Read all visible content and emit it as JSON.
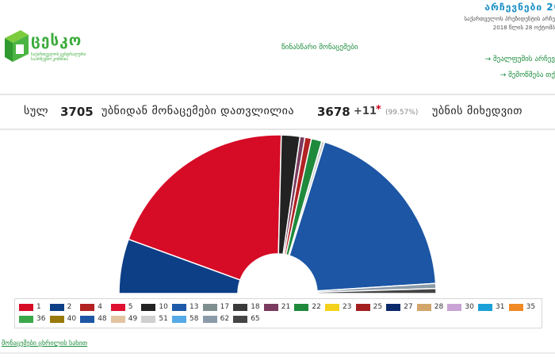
{
  "header": {
    "logo_name": "ცესკო",
    "logo_subtitle": "საქართველოს ცენტრალური საარჩევნო კომისია",
    "election_title": "არჩევნები 20",
    "subline_1": "საქართველოს პრეზიდენტის არჩე",
    "subline_2": "2018 წლის 28 ოქტომბ",
    "preliminary": "წინასწარი მონაცემები",
    "link_a": "→ შეალფუშის არჩევ",
    "link_b": "→ შემოწმება თქ"
  },
  "stats": {
    "total_label": "სულ",
    "total": "3705",
    "from_label": "უბნიდან მონაცემები დათვლილია",
    "counted": "3678",
    "extra": "+11",
    "star": "*",
    "percent": "(99.57%)",
    "by_label": "უბნის მიხედვით"
  },
  "colors": {
    "1": "#d60b26",
    "2": "#0d3f86",
    "4": "#b22222",
    "5": "#e01030",
    "10": "#222222",
    "13": "#1e5aa8",
    "17": "#7f8f8f",
    "18": "#3a3a3a",
    "21": "#7a3b5e",
    "22": "#1f8a3c",
    "23": "#f4d21b",
    "25": "#a31f1f",
    "27": "#0b2a6b",
    "28": "#d2a56a",
    "30": "#c9a3d6",
    "31": "#1ba0d8",
    "35": "#f08a24",
    "36": "#3aa84a",
    "40": "#9a7a0c",
    "48": "#1c56a4",
    "49": "#e3c4a0",
    "51": "#cfcfcf",
    "58": "#55a9e6",
    "62": "#8a9aa8",
    "65": "#454545"
  },
  "chart_data": {
    "type": "pie",
    "subtype": "semicircle",
    "title": "",
    "categories": [
      "2",
      "1",
      "10",
      "21",
      "4",
      "22",
      "51",
      "48",
      "62",
      "65"
    ],
    "values": [
      10.9,
      38.9,
      3.7,
      1.0,
      1.3,
      2.1,
      0.6,
      37.6,
      1.0,
      1.0
    ],
    "legend": [
      "1",
      "2",
      "4",
      "5",
      "10",
      "13",
      "17",
      "18",
      "21",
      "22",
      "23",
      "25",
      "27",
      "28",
      "30",
      "31",
      "35",
      "36",
      "40",
      "48",
      "49",
      "51",
      "58",
      "62",
      "65"
    ],
    "legend_position": "bottom"
  },
  "footer": {
    "link": "მონაცემები ცხრილის სახით"
  }
}
